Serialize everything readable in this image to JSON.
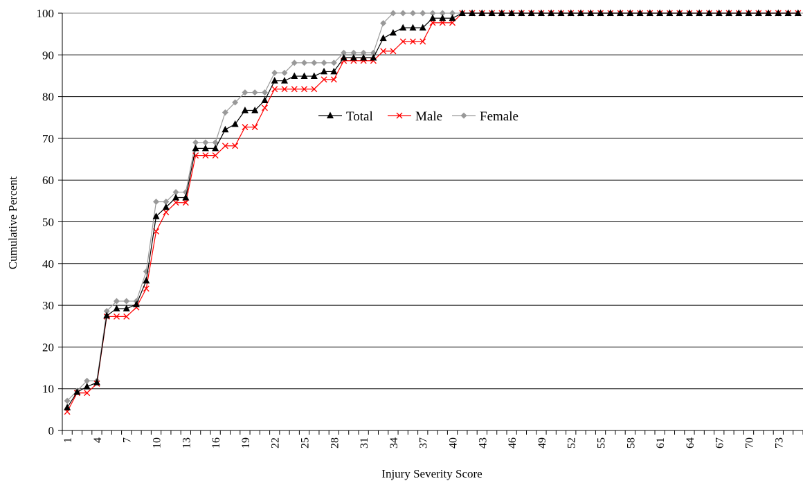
{
  "chart_data": {
    "type": "line",
    "title": "",
    "xlabel": "Injury Severity Score",
    "ylabel": "Cumulative Percent",
    "ylim": [
      0,
      100
    ],
    "yticks": [
      "0",
      "10",
      "20",
      "30",
      "40",
      "50",
      "60",
      "70",
      "80",
      "90",
      "100"
    ],
    "x": [
      1,
      2,
      3,
      4,
      5,
      6,
      7,
      8,
      9,
      10,
      11,
      12,
      13,
      14,
      15,
      16,
      17,
      18,
      19,
      20,
      21,
      22,
      23,
      24,
      25,
      26,
      27,
      28,
      29,
      30,
      31,
      32,
      33,
      34,
      35,
      36,
      37,
      38,
      39,
      40,
      41,
      42,
      43,
      44,
      45,
      46,
      47,
      48,
      49,
      50,
      51,
      52,
      53,
      54,
      55,
      56,
      57,
      58,
      59,
      60,
      61,
      62,
      63,
      64,
      65,
      66,
      67,
      68,
      69,
      70,
      71,
      72,
      73,
      74,
      75
    ],
    "xtick_labels": [
      "1",
      "4",
      "7",
      "10",
      "13",
      "16",
      "19",
      "22",
      "25",
      "28",
      "31",
      "34",
      "37",
      "40",
      "43",
      "46",
      "49",
      "52",
      "55",
      "58",
      "61",
      "64",
      "67",
      "70",
      "73"
    ],
    "grid": "horizontal",
    "legend_position": "top-center",
    "series": [
      {
        "name": "Total",
        "color": "#000000",
        "marker": "triangle",
        "values": [
          5.5,
          9.2,
          10.5,
          11.5,
          27.5,
          29.2,
          29.2,
          30.2,
          35.9,
          51.3,
          53.5,
          55.8,
          55.8,
          67.6,
          67.6,
          67.6,
          72.1,
          73.4,
          76.7,
          76.7,
          79.1,
          83.8,
          83.8,
          84.9,
          84.9,
          84.9,
          86.0,
          86.0,
          89.3,
          89.3,
          89.3,
          89.3,
          94.0,
          95.3,
          96.5,
          96.5,
          96.5,
          98.8,
          98.8,
          98.8,
          100,
          100,
          100,
          100,
          100,
          100,
          100,
          100,
          100,
          100,
          100,
          100,
          100,
          100,
          100,
          100,
          100,
          100,
          100,
          100,
          100,
          100,
          100,
          100,
          100,
          100,
          100,
          100,
          100,
          100,
          100,
          100,
          100,
          100,
          100
        ]
      },
      {
        "name": "Male",
        "color": "#ff0000",
        "marker": "x",
        "values": [
          4.5,
          9.0,
          9.0,
          11.2,
          27.3,
          27.3,
          27.3,
          29.5,
          34.0,
          47.7,
          52.3,
          54.6,
          54.6,
          65.9,
          65.9,
          65.9,
          68.2,
          68.2,
          72.7,
          72.7,
          77.3,
          81.8,
          81.8,
          81.8,
          81.8,
          81.8,
          84.1,
          84.1,
          88.6,
          88.6,
          88.6,
          88.6,
          90.9,
          90.9,
          93.2,
          93.2,
          93.2,
          97.7,
          97.7,
          97.7,
          100,
          100,
          100,
          100,
          100,
          100,
          100,
          100,
          100,
          100,
          100,
          100,
          100,
          100,
          100,
          100,
          100,
          100,
          100,
          100,
          100,
          100,
          100,
          100,
          100,
          100,
          100,
          100,
          100,
          100,
          100,
          100,
          100,
          100,
          100
        ]
      },
      {
        "name": "Female",
        "color": "#999999",
        "marker": "diamond",
        "values": [
          7.1,
          9.5,
          11.9,
          11.9,
          28.6,
          31.0,
          31.0,
          31.0,
          38.1,
          54.8,
          54.8,
          57.1,
          57.1,
          69.0,
          69.0,
          69.0,
          76.2,
          78.6,
          81.0,
          81.0,
          81.0,
          85.7,
          85.7,
          88.1,
          88.1,
          88.1,
          88.1,
          88.1,
          90.5,
          90.5,
          90.5,
          90.5,
          97.6,
          100,
          100,
          100,
          100,
          100,
          100,
          100,
          100,
          100,
          100,
          100,
          100,
          100,
          100,
          100,
          100,
          100,
          100,
          100,
          100,
          100,
          100,
          100,
          100,
          100,
          100,
          100,
          100,
          100,
          100,
          100,
          100,
          100,
          100,
          100,
          100,
          100,
          100,
          100,
          100,
          100,
          100
        ]
      }
    ]
  }
}
